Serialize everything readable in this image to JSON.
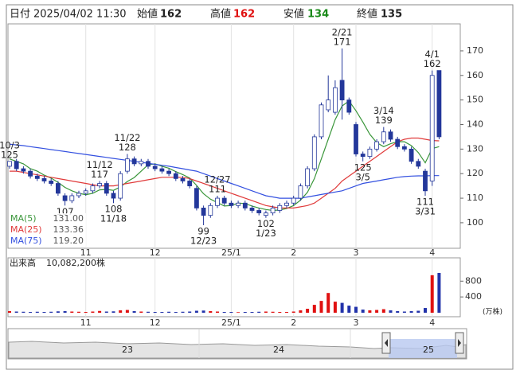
{
  "chart_data": {
    "type": "candlestick",
    "header": {
      "date_label": "日付",
      "datetime": "2025/04/02 11:30",
      "open_label": "始値",
      "open": 162,
      "high_label": "高値",
      "high": 162,
      "low_label": "安値",
      "low": 134,
      "close_label": "終値",
      "close": 135
    },
    "categories": [
      null,
      null,
      null,
      null,
      null,
      null,
      null,
      null,
      null,
      null,
      null,
      "11",
      null,
      null,
      null,
      null,
      null,
      null,
      null,
      null,
      null,
      "12",
      null,
      null,
      null,
      null,
      null,
      null,
      null,
      null,
      null,
      null,
      "25/1",
      null,
      null,
      null,
      null,
      null,
      null,
      null,
      null,
      "2",
      null,
      null,
      null,
      null,
      null,
      null,
      null,
      null,
      "3",
      null,
      null,
      null,
      null,
      null,
      null,
      null,
      null,
      null,
      null,
      "4",
      null
    ],
    "open": [
      123,
      125,
      122,
      121,
      119,
      118,
      117,
      116,
      111,
      109,
      111,
      112,
      113,
      115,
      116,
      112,
      110,
      121,
      126,
      124,
      125,
      123,
      122,
      121,
      120,
      118,
      117,
      114,
      106,
      103,
      107,
      110,
      108,
      107,
      108,
      106,
      105,
      103,
      104,
      105,
      107,
      108,
      110,
      115,
      122,
      135,
      146,
      145,
      158,
      150,
      140,
      128,
      127,
      130,
      133,
      137,
      134,
      131,
      130,
      125,
      121,
      117,
      162
    ],
    "high": [
      125,
      126,
      123,
      122,
      120,
      119,
      118,
      117,
      112,
      112,
      113,
      114,
      116,
      117,
      117,
      113,
      121,
      128,
      127,
      126,
      126,
      124,
      123,
      122,
      121,
      119,
      118,
      115,
      107,
      108,
      111,
      111,
      109,
      109,
      109,
      107,
      106,
      105,
      107,
      108,
      109,
      111,
      116,
      123,
      136,
      149,
      160,
      158,
      171,
      151,
      141,
      129,
      131,
      134,
      139,
      138,
      135,
      132,
      131,
      126,
      122,
      162,
      162
    ],
    "low": [
      122,
      121,
      120,
      118,
      117,
      116,
      115,
      111,
      107,
      108,
      110,
      111,
      112,
      114,
      111,
      108,
      109,
      120,
      123,
      123,
      122,
      121,
      120,
      119,
      117,
      116,
      114,
      105,
      99,
      102,
      106,
      107,
      106,
      106,
      105,
      104,
      103,
      102,
      103,
      104,
      106,
      107,
      109,
      114,
      121,
      134,
      145,
      144,
      142,
      144,
      127,
      125,
      126,
      129,
      132,
      133,
      130,
      129,
      124,
      122,
      111,
      115,
      134
    ],
    "close": [
      125,
      122,
      121,
      119,
      118,
      117,
      116,
      112,
      109,
      111,
      112,
      113,
      115,
      116,
      112,
      110,
      120,
      126,
      124,
      125,
      123,
      122,
      121,
      120,
      118,
      117,
      115,
      106,
      103,
      107,
      110,
      108,
      107,
      108,
      106,
      105,
      104,
      104,
      106,
      107,
      108,
      110,
      115,
      122,
      135,
      148,
      150,
      155,
      150,
      145,
      128,
      127,
      130,
      133,
      137,
      134,
      131,
      130,
      125,
      123,
      113,
      160,
      135
    ],
    "up_color": "#ffffff",
    "down_color": "#23379a",
    "candle_outline": "#23379a",
    "series": [
      {
        "name": "MA(5)",
        "color": "#3a963a",
        "last": {
          "value": 131,
          "label": "131.00"
        },
        "values": [
          126,
          125,
          124,
          122,
          121,
          119.4,
          118.2,
          116.4,
          114.4,
          113,
          112,
          111.4,
          112,
          113.4,
          113.6,
          113.2,
          114.6,
          116.8,
          118.4,
          121,
          123.6,
          124,
          123,
          122.2,
          120.8,
          119.6,
          118.2,
          115.2,
          111.8,
          109.6,
          108.2,
          106.8,
          107,
          108,
          107.8,
          106.8,
          106,
          105.4,
          105,
          105.2,
          105.8,
          107,
          109.2,
          112.4,
          118,
          126,
          134,
          142,
          147.6,
          149.6,
          145.6,
          141,
          136,
          132.6,
          131,
          132.2,
          133,
          133,
          131.4,
          128.6,
          124.4,
          130.2,
          131
        ]
      },
      {
        "name": "MA(25)",
        "color": "#e03a3a",
        "last": {
          "value": 133.36,
          "label": "133.36"
        },
        "values": [
          121,
          121,
          120.5,
          120,
          119.5,
          119,
          118.5,
          118,
          117.5,
          117,
          116.5,
          116,
          115.5,
          115,
          115,
          115,
          115.5,
          116,
          116.5,
          117,
          117.5,
          118,
          118.5,
          118.5,
          118.5,
          118.5,
          118,
          117,
          116,
          115,
          114,
          113,
          112,
          111,
          110,
          109,
          108,
          107,
          106.5,
          106,
          106,
          106,
          106.5,
          107,
          108,
          110,
          112,
          114,
          117,
          119,
          121,
          123,
          125,
          127,
          129,
          131,
          133,
          134,
          134.5,
          134.5,
          134,
          133.5,
          133.36
        ]
      },
      {
        "name": "MA(75)",
        "color": "#3350e0",
        "last": {
          "value": 119.2,
          "label": "119.20"
        },
        "values": [
          132,
          131.7,
          131.4,
          131,
          130.6,
          130.2,
          129.8,
          129.4,
          129,
          128.6,
          128.2,
          127.8,
          127.4,
          127,
          126.6,
          126.2,
          125.8,
          125.4,
          125,
          124.6,
          124.2,
          123.8,
          123.4,
          123,
          122.5,
          122,
          121.5,
          121,
          120,
          119,
          118,
          117,
          116,
          115,
          114,
          113,
          112,
          111,
          110.5,
          110,
          110,
          110,
          110,
          110.5,
          111,
          111.5,
          112,
          112.5,
          113,
          114,
          115,
          116,
          116.5,
          117,
          117.5,
          118,
          118.5,
          118.8,
          119,
          119.1,
          119.1,
          119.2,
          119.2
        ]
      }
    ],
    "ylim": [
      89.6,
      181
    ],
    "yticks": [
      100,
      110,
      120,
      130,
      140,
      150,
      160,
      170
    ],
    "annotations": [
      {
        "date": "10/3",
        "price": 125
      },
      {
        "date": "11/12",
        "price": 117
      },
      {
        "date": "11/22",
        "price": 128
      },
      {
        "date": "12/27",
        "price": 111
      },
      {
        "date": "2/21",
        "price": 171
      },
      {
        "date": "3/14",
        "price": 139
      },
      {
        "date": "4/1",
        "price": 162
      },
      {
        "price": 107
      },
      {
        "date": "11/18",
        "price": 108
      },
      {
        "date": "12/23",
        "price": 99
      },
      {
        "date": "1/23",
        "price": 102
      },
      {
        "date": "3/5",
        "price": 125
      },
      {
        "date": "3/31",
        "price": 111
      }
    ],
    "volume_label": "出来高",
    "volume_total": {
      "value": 10082200,
      "label": "10,082,200株"
    },
    "volume_unit": "(万株)",
    "volume": [
      40,
      30,
      25,
      20,
      25,
      20,
      25,
      35,
      40,
      30,
      25,
      20,
      30,
      45,
      30,
      35,
      60,
      70,
      40,
      30,
      25,
      20,
      20,
      25,
      20,
      25,
      30,
      50,
      55,
      40,
      30,
      20,
      20,
      15,
      20,
      20,
      25,
      30,
      25,
      20,
      20,
      30,
      60,
      100,
      200,
      300,
      500,
      280,
      250,
      180,
      150,
      80,
      60,
      70,
      90,
      60,
      40,
      30,
      40,
      50,
      120,
      950,
      1008
    ],
    "volume_up_color": "#e01010",
    "volume_down_color": "#2233aa",
    "volume_ylim": [
      0,
      1350
    ],
    "volume_yticks": [
      400,
      800
    ],
    "navigator_labels": [
      "23",
      "24",
      "25"
    ]
  }
}
